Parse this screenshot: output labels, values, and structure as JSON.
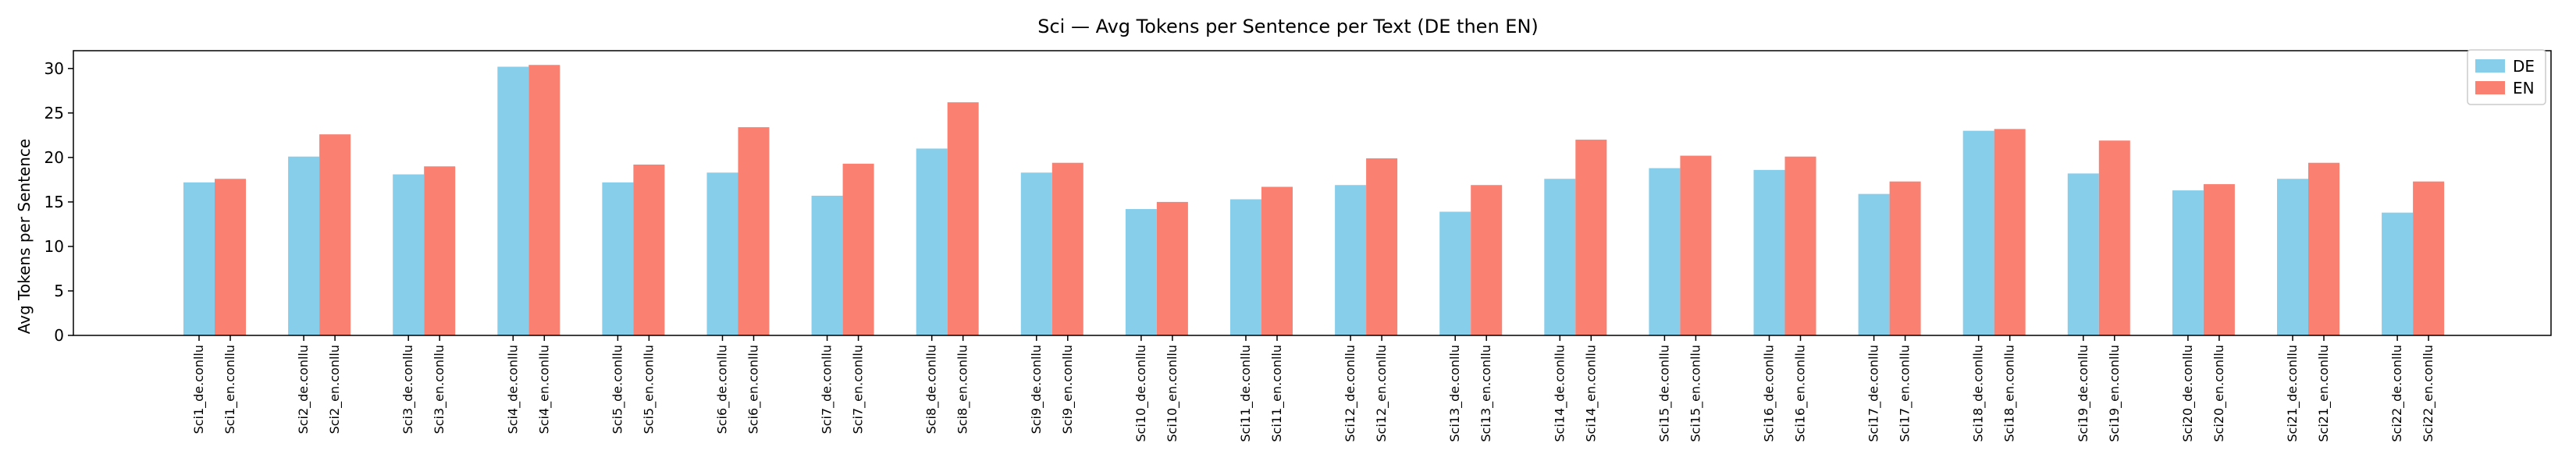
{
  "chart_data": {
    "type": "bar",
    "title": "Sci — Avg Tokens per Sentence per Text (DE then EN)",
    "xlabel": "",
    "ylabel": "Avg Tokens per Sentence",
    "ylim": [
      0,
      32
    ],
    "yticks": [
      0,
      5,
      10,
      15,
      20,
      25,
      30
    ],
    "grid": false,
    "legend": {
      "placement": "top-right"
    },
    "groups": [
      "Sci1",
      "Sci2",
      "Sci3",
      "Sci4",
      "Sci5",
      "Sci6",
      "Sci7",
      "Sci8",
      "Sci9",
      "Sci10",
      "Sci11",
      "Sci12",
      "Sci13",
      "Sci14",
      "Sci15",
      "Sci16",
      "Sci17",
      "Sci18",
      "Sci19",
      "Sci20",
      "Sci21",
      "Sci22"
    ],
    "series": [
      {
        "name": "DE",
        "color": "#87ceeb",
        "labels": [
          "Sci1_de.conllu",
          "Sci2_de.conllu",
          "Sci3_de.conllu",
          "Sci4_de.conllu",
          "Sci5_de.conllu",
          "Sci6_de.conllu",
          "Sci7_de.conllu",
          "Sci8_de.conllu",
          "Sci9_de.conllu",
          "Sci10_de.conllu",
          "Sci11_de.conllu",
          "Sci12_de.conllu",
          "Sci13_de.conllu",
          "Sci14_de.conllu",
          "Sci15_de.conllu",
          "Sci16_de.conllu",
          "Sci17_de.conllu",
          "Sci18_de.conllu",
          "Sci19_de.conllu",
          "Sci20_de.conllu",
          "Sci21_de.conllu",
          "Sci22_de.conllu"
        ],
        "values": [
          17.2,
          20.1,
          18.1,
          30.2,
          17.2,
          18.3,
          15.7,
          21.0,
          18.3,
          14.2,
          15.3,
          16.9,
          13.9,
          17.6,
          18.8,
          18.6,
          15.9,
          23.0,
          18.2,
          16.3,
          17.6,
          13.8
        ]
      },
      {
        "name": "EN",
        "color": "#fa8072",
        "labels": [
          "Sci1_en.conllu",
          "Sci2_en.conllu",
          "Sci3_en.conllu",
          "Sci4_en.conllu",
          "Sci5_en.conllu",
          "Sci6_en.conllu",
          "Sci7_en.conllu",
          "Sci8_en.conllu",
          "Sci9_en.conllu",
          "Sci10_en.conllu",
          "Sci11_en.conllu",
          "Sci12_en.conllu",
          "Sci13_en.conllu",
          "Sci14_en.conllu",
          "Sci15_en.conllu",
          "Sci16_en.conllu",
          "Sci17_en.conllu",
          "Sci18_en.conllu",
          "Sci19_en.conllu",
          "Sci20_en.conllu",
          "Sci21_en.conllu",
          "Sci22_en.conllu"
        ],
        "values": [
          17.6,
          22.6,
          19.0,
          30.4,
          19.2,
          23.4,
          19.3,
          26.2,
          19.4,
          15.0,
          16.7,
          19.9,
          16.9,
          22.0,
          20.2,
          20.1,
          17.3,
          23.2,
          21.9,
          17.0,
          19.4,
          17.3
        ]
      }
    ]
  }
}
